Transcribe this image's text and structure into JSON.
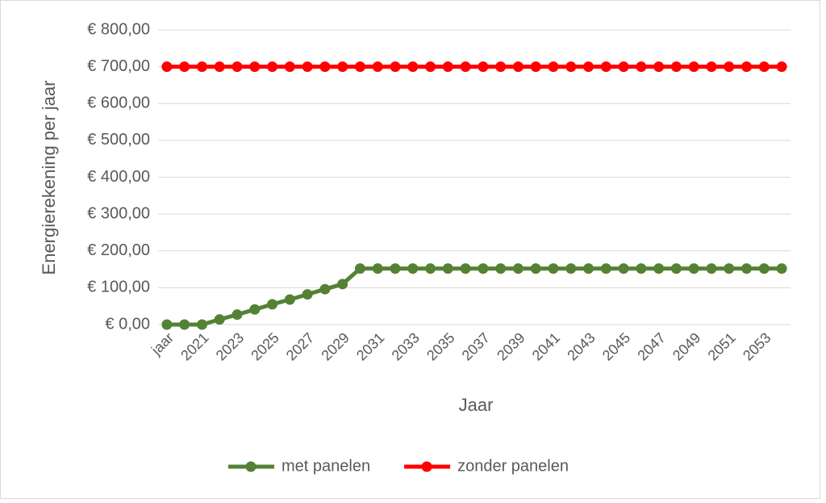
{
  "chart_data": {
    "type": "line",
    "categories": [
      "jaar",
      null,
      "2021",
      null,
      "2023",
      null,
      "2025",
      null,
      "2027",
      null,
      "2029",
      null,
      "2031",
      null,
      "2033",
      null,
      "2035",
      null,
      "2037",
      null,
      "2039",
      null,
      "2041",
      null,
      "2043",
      null,
      "2045",
      null,
      "2047",
      null,
      "2049",
      null,
      "2051",
      null,
      "2053",
      null
    ],
    "series": [
      {
        "name": "met panelen",
        "color": "#548235",
        "values": [
          0,
          0,
          0,
          14,
          27,
          41,
          55,
          68,
          82,
          96,
          110,
          152,
          152,
          152,
          152,
          152,
          152,
          152,
          152,
          152,
          152,
          152,
          152,
          152,
          152,
          152,
          152,
          152,
          152,
          152,
          152,
          152,
          152,
          152,
          152,
          152
        ]
      },
      {
        "name": "zonder panelen",
        "color": "#ff0000",
        "values": [
          700,
          700,
          700,
          700,
          700,
          700,
          700,
          700,
          700,
          700,
          700,
          700,
          700,
          700,
          700,
          700,
          700,
          700,
          700,
          700,
          700,
          700,
          700,
          700,
          700,
          700,
          700,
          700,
          700,
          700,
          700,
          700,
          700,
          700,
          700,
          700
        ]
      }
    ],
    "y_label": "Energierekening per jaar",
    "x_label": "Jaar",
    "ylim": [
      0,
      800
    ],
    "yticks": [
      {
        "value": 0,
        "label": "€ 0,00"
      },
      {
        "value": 100,
        "label": "€ 100,00"
      },
      {
        "value": 200,
        "label": "€ 200,00"
      },
      {
        "value": 300,
        "label": "€ 300,00"
      },
      {
        "value": 400,
        "label": "€ 400,00"
      },
      {
        "value": 500,
        "label": "€ 500,00"
      },
      {
        "value": 600,
        "label": "€ 600,00"
      },
      {
        "value": 700,
        "label": "€ 700,00"
      },
      {
        "value": 800,
        "label": "€ 800,00"
      }
    ],
    "grid": true,
    "legend": "bottom"
  }
}
